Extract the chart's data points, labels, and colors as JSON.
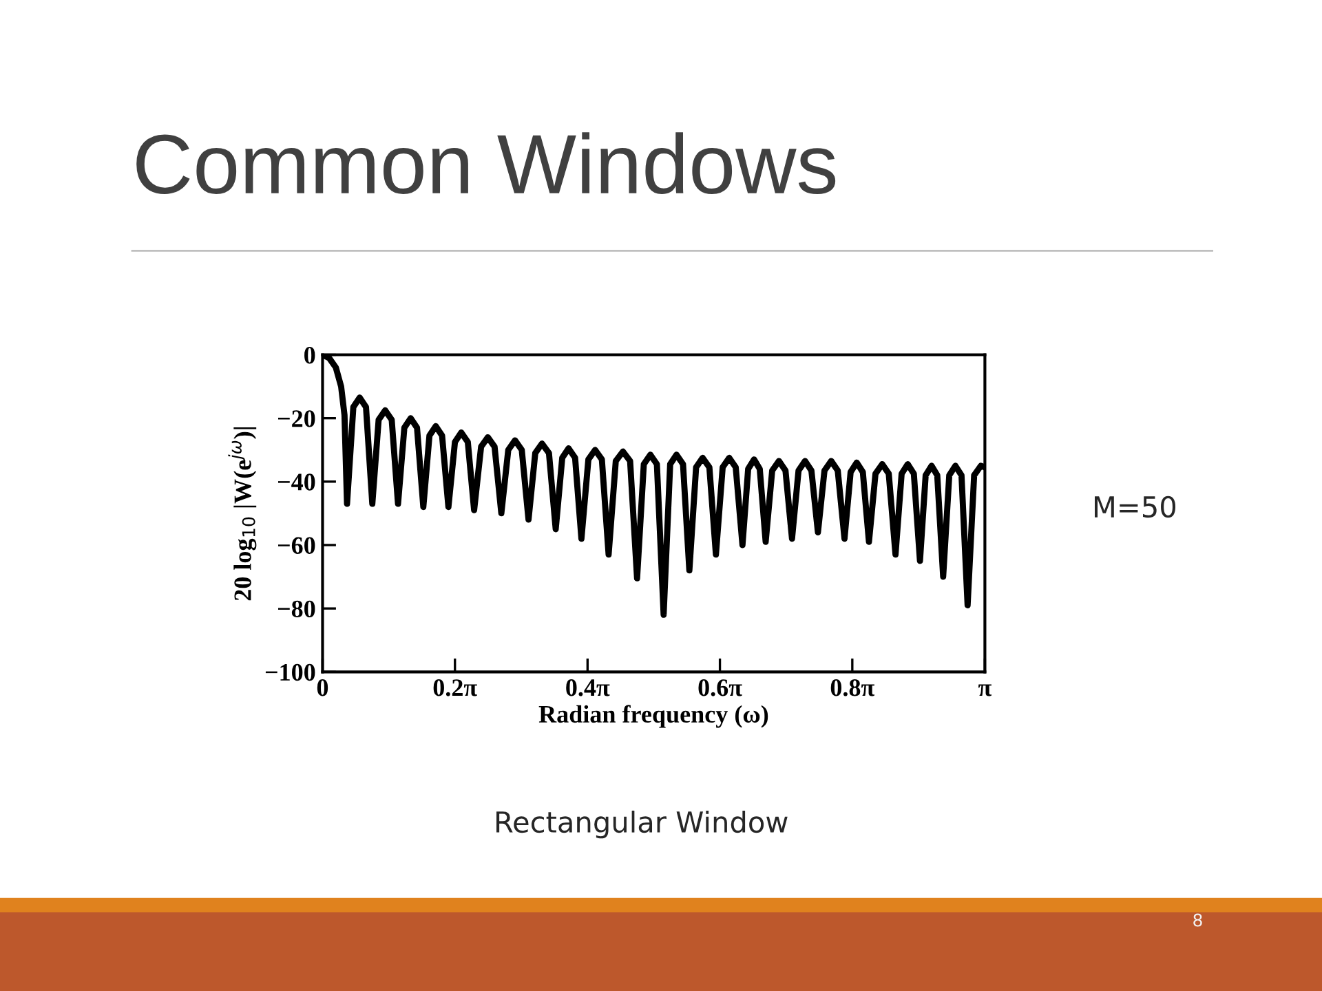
{
  "chart_data": {
    "type": "line",
    "title": "Common Windows",
    "xlabel": "Radian frequency (ω)",
    "ylabel": "20 log$_{10}$ |W(e$^{jω}$)|",
    "annotations": [
      "M=50",
      "Rectangular Window",
      "8"
    ],
    "xlim": [
      0,
      3.142
    ],
    "ylim": [
      -100,
      0
    ],
    "xticks": [
      0,
      {
        "value": 0.628,
        "label": "0.2π"
      },
      {
        "value": 1.257,
        "label": "0.4π"
      },
      {
        "value": 1.885,
        "label": "0.6π"
      },
      {
        "value": 2.513,
        "label": "0.8π"
      },
      {
        "value": 3.142,
        "label": "π"
      }
    ],
    "yticks": [
      {
        "value": -100,
        "label": "−100"
      },
      {
        "value": -80,
        "label": "−80"
      },
      {
        "value": -60,
        "label": "−60"
      },
      {
        "value": -40,
        "label": "−40"
      },
      {
        "value": -20,
        "label": "−20"
      },
      0
    ],
    "grid": false,
    "legend": false,
    "marker": "none",
    "line_style": "solid",
    "series": [
      {
        "color": "#000000",
        "x": [
          0,
          0.031,
          0.063,
          0.088,
          0.104,
          0.116,
          0.146,
          0.176,
          0.206,
          0.236,
          0.266,
          0.297,
          0.328,
          0.358,
          0.388,
          0.418,
          0.448,
          0.478,
          0.507,
          0.537,
          0.567,
          0.597,
          0.628,
          0.658,
          0.689,
          0.719,
          0.752,
          0.784,
          0.816,
          0.848,
          0.881,
          0.913,
          0.945,
          0.977,
          1.009,
          1.041,
          1.074,
          1.106,
          1.137,
          1.167,
          1.198,
          1.228,
          1.261,
          1.293,
          1.325,
          1.357,
          1.391,
          1.425,
          1.459,
          1.492,
          1.524,
          1.555,
          1.586,
          1.618,
          1.649,
          1.679,
          1.71,
          1.74,
          1.772,
          1.803,
          1.835,
          1.866,
          1.898,
          1.929,
          1.96,
          1.992,
          2.019,
          2.047,
          2.074,
          2.102,
          2.133,
          2.165,
          2.196,
          2.227,
          2.258,
          2.289,
          2.319,
          2.35,
          2.381,
          2.413,
          2.444,
          2.476,
          2.505,
          2.534,
          2.563,
          2.592,
          2.623,
          2.655,
          2.686,
          2.718,
          2.747,
          2.776,
          2.805,
          2.834,
          2.861,
          2.889,
          2.916,
          2.944,
          2.973,
          3.002,
          3.031,
          3.06,
          3.091,
          3.123,
          3.142
        ],
        "values": [
          0,
          -1,
          -4,
          -10,
          -19,
          -47,
          -16.5,
          -13.5,
          -16.5,
          -47,
          -20.5,
          -17.5,
          -20.5,
          -47,
          -23,
          -20,
          -23,
          -48,
          -25.5,
          -22.5,
          -25.5,
          -48,
          -27.5,
          -24.5,
          -27.5,
          -49,
          -29,
          -26,
          -29,
          -50,
          -30,
          -27,
          -30,
          -52,
          -31,
          -28,
          -31,
          -55,
          -32.5,
          -29.5,
          -32.5,
          -58,
          -33,
          -30,
          -33,
          -63,
          -33.5,
          -30.5,
          -33.5,
          -70.5,
          -34.5,
          -31.5,
          -34.5,
          -82,
          -34.5,
          -31.5,
          -34.5,
          -68,
          -35.5,
          -32.5,
          -35.5,
          -63,
          -35.5,
          -32.5,
          -35.5,
          -60,
          -36,
          -33,
          -36,
          -59,
          -36.5,
          -33.5,
          -36.5,
          -58,
          -36.5,
          -33.5,
          -36.5,
          -56,
          -36.5,
          -33.5,
          -36.5,
          -58,
          -37,
          -34,
          -37,
          -59,
          -37.5,
          -34.5,
          -37.5,
          -63,
          -37.5,
          -34.5,
          -37.5,
          -65,
          -38,
          -35,
          -38,
          -70,
          -38,
          -35,
          -38,
          -79,
          -38,
          -35,
          -35.5
        ]
      }
    ]
  }
}
